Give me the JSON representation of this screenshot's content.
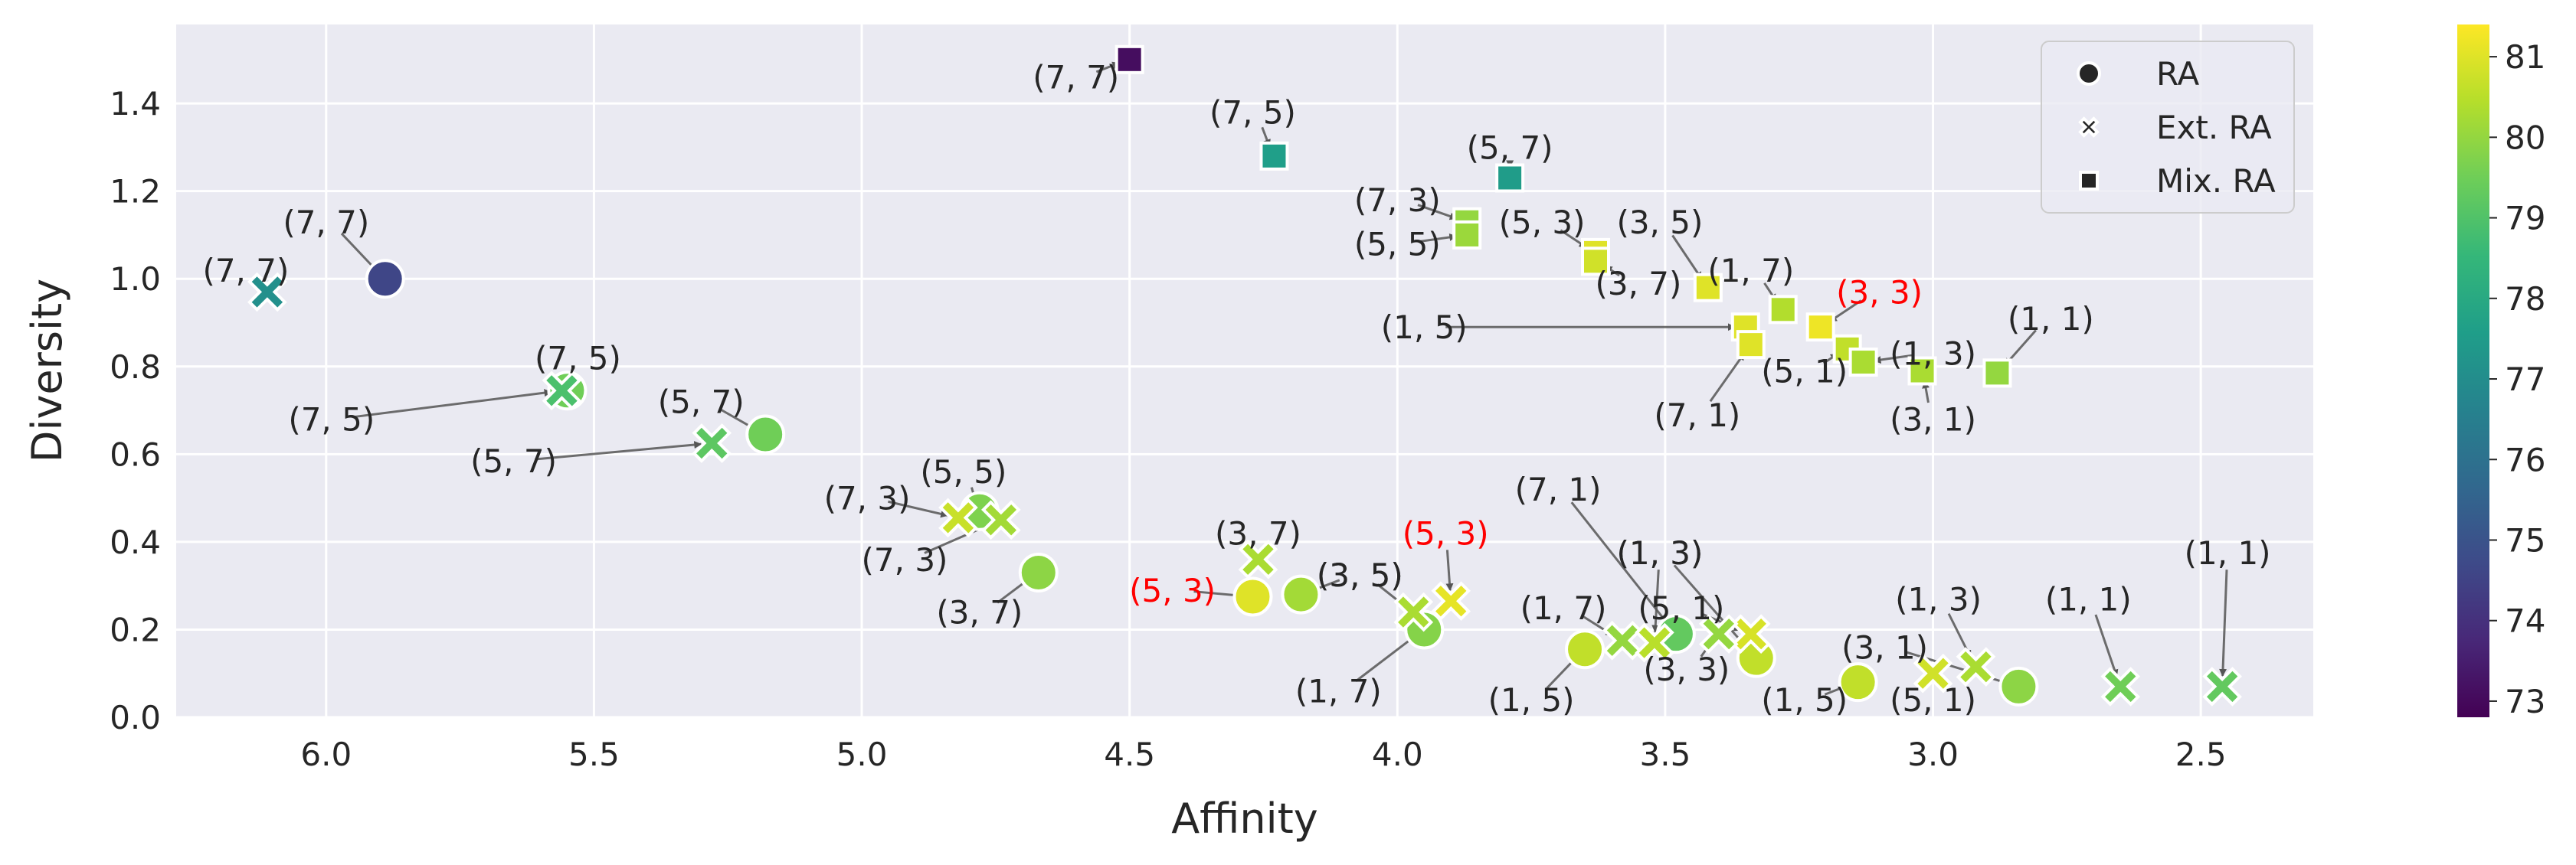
{
  "chart_data": {
    "type": "scatter",
    "xlabel": "Affinity",
    "ylabel": "Diversity",
    "xlim": [
      6.28,
      2.29
    ],
    "ylim": [
      0.0,
      1.58
    ],
    "x_reversed": true,
    "xticks": [
      "6.0",
      "5.5",
      "5.0",
      "4.5",
      "4.0",
      "3.5",
      "3.0",
      "2.5"
    ],
    "yticks": [
      "0.0",
      "0.2",
      "0.4",
      "0.6",
      "0.8",
      "1.0",
      "1.2",
      "1.4"
    ],
    "grid": true,
    "legend": {
      "placement": "top-right",
      "entries": [
        {
          "label": "RA",
          "marker": "circle"
        },
        {
          "label": "Ext. RA",
          "marker": "x"
        },
        {
          "label": "Mix. RA",
          "marker": "square"
        }
      ]
    },
    "colorbar": {
      "colormap": "viridis",
      "range": [
        72.8,
        81.4
      ],
      "ticks": [
        "73",
        "74",
        "75",
        "76",
        "77",
        "78",
        "79",
        "80",
        "81"
      ]
    },
    "series": [
      {
        "name": "RA",
        "marker": "circle",
        "points": [
          {
            "x": 5.89,
            "y": 1.0,
            "c": 74.6,
            "label": "(7, 7)",
            "lx": 6.0,
            "ly": 1.13,
            "highlight": false
          },
          {
            "x": 5.55,
            "y": 0.745,
            "c": 79.5,
            "label": "(7, 5)",
            "lx": 5.53,
            "ly": 0.82,
            "highlight": false
          },
          {
            "x": 5.18,
            "y": 0.645,
            "c": 79.5,
            "label": "(5, 7)",
            "lx": 5.3,
            "ly": 0.72,
            "highlight": false
          },
          {
            "x": 4.78,
            "y": 0.47,
            "c": 79.7,
            "label": "(5, 5)",
            "lx": 4.81,
            "ly": 0.56,
            "highlight": false
          },
          {
            "x": 4.67,
            "y": 0.33,
            "c": 79.9,
            "label": "(3, 7)",
            "lx": 4.78,
            "ly": 0.24,
            "highlight": false
          },
          {
            "x": 4.18,
            "y": 0.28,
            "c": 80.2,
            "label": "(3, 5)",
            "lx": 4.07,
            "ly": 0.325,
            "highlight": false
          },
          {
            "x": 4.27,
            "y": 0.275,
            "c": 81.0,
            "label": "(5, 3)",
            "lx": 4.42,
            "ly": 0.29,
            "highlight": true
          },
          {
            "x": 3.95,
            "y": 0.2,
            "c": 79.8,
            "label": "(1, 7)",
            "lx": 4.11,
            "ly": 0.06,
            "highlight": false
          },
          {
            "x": 3.65,
            "y": 0.155,
            "c": 80.6,
            "label": "(1, 5)",
            "lx": 3.75,
            "ly": 0.04,
            "highlight": false
          },
          {
            "x": 3.48,
            "y": 0.19,
            "c": 79.3,
            "label": "(7, 1)",
            "lx": 3.7,
            "ly": 0.52,
            "highlight": false
          },
          {
            "x": 3.33,
            "y": 0.135,
            "c": 80.6,
            "label": "(1, 3)",
            "lx": 3.51,
            "ly": 0.375,
            "highlight": false
          },
          {
            "x": 3.14,
            "y": 0.08,
            "c": 80.6,
            "label": "(1, 5)",
            "lx": 3.24,
            "ly": 0.04,
            "highlight": false
          },
          {
            "x": 2.84,
            "y": 0.07,
            "c": 79.9,
            "label": "(3, 1)",
            "lx": 3.09,
            "ly": 0.16,
            "highlight": false
          }
        ]
      },
      {
        "name": "Ext. RA",
        "marker": "x",
        "points": [
          {
            "x": 6.11,
            "y": 0.97,
            "c": 77.1,
            "label": "(7, 7)",
            "lx": 6.15,
            "ly": 1.02,
            "highlight": false
          },
          {
            "x": 5.56,
            "y": 0.745,
            "c": 78.9,
            "label": "(7, 5)",
            "lx": 5.99,
            "ly": 0.68,
            "highlight": false
          },
          {
            "x": 5.28,
            "y": 0.625,
            "c": 79.2,
            "label": "(5, 7)",
            "lx": 5.65,
            "ly": 0.585,
            "highlight": false
          },
          {
            "x": 4.82,
            "y": 0.455,
            "c": 80.7,
            "label": "(7, 3)",
            "lx": 4.99,
            "ly": 0.5,
            "highlight": false
          },
          {
            "x": 4.74,
            "y": 0.45,
            "c": 80.2,
            "label": "(7, 3)",
            "lx": 4.92,
            "ly": 0.36,
            "highlight": false
          },
          {
            "x": 4.26,
            "y": 0.36,
            "c": 80.3,
            "label": "(3, 7)",
            "lx": 4.26,
            "ly": 0.42,
            "highlight": false
          },
          {
            "x": 3.97,
            "y": 0.24,
            "c": 80.3,
            "label": "(3, 5)",
            "lx": 4.07,
            "ly": 0.325,
            "highlight": false
          },
          {
            "x": 3.9,
            "y": 0.265,
            "c": 81.1,
            "label": "(5, 3)",
            "lx": 3.91,
            "ly": 0.42,
            "highlight": true
          },
          {
            "x": 3.58,
            "y": 0.175,
            "c": 80.0,
            "label": "(1, 7)",
            "lx": 3.69,
            "ly": 0.25,
            "highlight": false
          },
          {
            "x": 3.52,
            "y": 0.17,
            "c": 80.5,
            "label": "(1, 3)",
            "lx": 3.51,
            "ly": 0.375,
            "highlight": false
          },
          {
            "x": 3.34,
            "y": 0.19,
            "c": 80.9,
            "label": "(5, 1)",
            "lx": 3.47,
            "ly": 0.25,
            "highlight": false
          },
          {
            "x": 3.0,
            "y": 0.1,
            "c": 80.8,
            "label": "(5, 1)",
            "lx": 3.0,
            "ly": 0.04,
            "highlight": false
          },
          {
            "x": 2.92,
            "y": 0.115,
            "c": 80.3,
            "label": "(1, 3)",
            "lx": 2.99,
            "ly": 0.27,
            "highlight": false
          },
          {
            "x": 2.65,
            "y": 0.07,
            "c": 79.5,
            "label": "(1, 1)",
            "lx": 2.71,
            "ly": 0.27,
            "highlight": false
          },
          {
            "x": 2.46,
            "y": 0.07,
            "c": 79.3,
            "label": "(1, 1)",
            "lx": 2.45,
            "ly": 0.375,
            "highlight": false
          },
          {
            "x": 3.4,
            "y": 0.19,
            "c": 80.0,
            "label": "(3, 3)",
            "lx": 3.46,
            "ly": 0.11,
            "highlight": false
          }
        ]
      },
      {
        "name": "Mix. RA",
        "marker": "square",
        "points": [
          {
            "x": 4.5,
            "y": 1.5,
            "c": 73.1,
            "label": "(7, 7)",
            "lx": 4.6,
            "ly": 1.46,
            "highlight": false
          },
          {
            "x": 4.23,
            "y": 1.28,
            "c": 77.6,
            "label": "(7, 5)",
            "lx": 4.27,
            "ly": 1.38,
            "highlight": false
          },
          {
            "x": 3.79,
            "y": 1.23,
            "c": 77.5,
            "label": "(5, 7)",
            "lx": 3.79,
            "ly": 1.3,
            "highlight": false
          },
          {
            "x": 3.87,
            "y": 1.13,
            "c": 80.0,
            "label": "(7, 3)",
            "lx": 4.0,
            "ly": 1.18,
            "highlight": false
          },
          {
            "x": 3.87,
            "y": 1.1,
            "c": 80.1,
            "label": "(5, 5)",
            "lx": 4.0,
            "ly": 1.08,
            "highlight": false
          },
          {
            "x": 3.63,
            "y": 1.06,
            "c": 81.0,
            "label": "(5, 3)",
            "lx": 3.73,
            "ly": 1.13,
            "highlight": false
          },
          {
            "x": 3.63,
            "y": 1.04,
            "c": 80.8,
            "label": "(3, 7)",
            "lx": 3.55,
            "ly": 0.99,
            "highlight": false
          },
          {
            "x": 3.42,
            "y": 0.98,
            "c": 81.0,
            "label": "(3, 5)",
            "lx": 3.51,
            "ly": 1.13,
            "highlight": false
          },
          {
            "x": 3.28,
            "y": 0.93,
            "c": 80.4,
            "label": "(1, 7)",
            "lx": 3.34,
            "ly": 1.02,
            "highlight": false
          },
          {
            "x": 3.21,
            "y": 0.89,
            "c": 81.2,
            "label": "(3, 3)",
            "lx": 3.1,
            "ly": 0.97,
            "highlight": true
          },
          {
            "x": 3.35,
            "y": 0.89,
            "c": 81.0,
            "label": "(1, 5)",
            "lx": 3.95,
            "ly": 0.89,
            "highlight": false
          },
          {
            "x": 3.34,
            "y": 0.85,
            "c": 81.0,
            "label": "(7, 1)",
            "lx": 3.44,
            "ly": 0.69,
            "highlight": false
          },
          {
            "x": 3.16,
            "y": 0.84,
            "c": 80.6,
            "label": "(5, 1)",
            "lx": 3.24,
            "ly": 0.79,
            "highlight": false
          },
          {
            "x": 3.13,
            "y": 0.81,
            "c": 80.3,
            "label": "(1, 3)",
            "lx": 3.0,
            "ly": 0.83,
            "highlight": false
          },
          {
            "x": 3.02,
            "y": 0.79,
            "c": 80.3,
            "label": "(3, 1)",
            "lx": 3.0,
            "ly": 0.68,
            "highlight": false
          },
          {
            "x": 2.88,
            "y": 0.785,
            "c": 80.0,
            "label": "(1, 1)",
            "lx": 2.78,
            "ly": 0.91,
            "highlight": false
          }
        ]
      }
    ]
  },
  "colors": {
    "axes_background": "#eaeaf2",
    "grid": "#ffffff",
    "text": "#262626",
    "highlight_label": "#ff0000",
    "arrow": "#555555"
  }
}
